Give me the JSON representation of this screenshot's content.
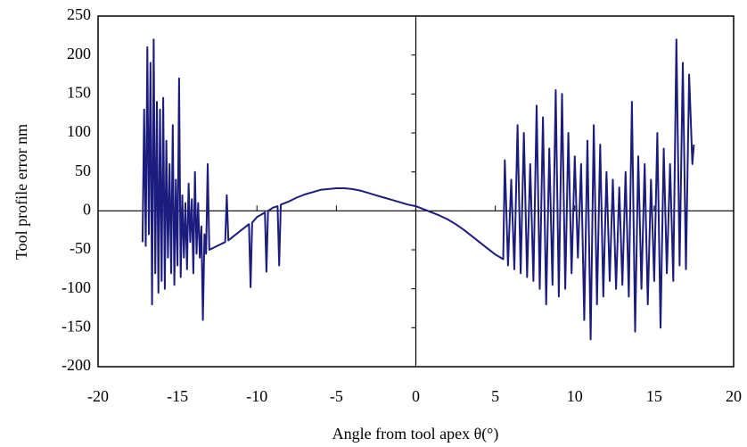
{
  "chart_data": {
    "type": "line",
    "xlabel": "Angle from tool apex θ(°)",
    "ylabel": "Tool profile error  nm",
    "xlim": [
      -20,
      20
    ],
    "xticks": [
      -20,
      -15,
      -10,
      -5,
      0,
      5,
      10,
      15,
      20
    ],
    "ylim": [
      -200,
      250
    ],
    "yticks": [
      -200,
      -150,
      -100,
      -50,
      0,
      50,
      100,
      150,
      200,
      250
    ],
    "x": [
      -17.2,
      -17.1,
      -17.0,
      -16.9,
      -16.8,
      -16.7,
      -16.6,
      -16.5,
      -16.4,
      -16.3,
      -16.2,
      -16.1,
      -16.0,
      -15.9,
      -15.8,
      -15.7,
      -15.6,
      -15.5,
      -15.4,
      -15.3,
      -15.2,
      -15.1,
      -15.0,
      -14.9,
      -14.8,
      -14.7,
      -14.6,
      -14.5,
      -14.4,
      -14.3,
      -14.2,
      -14.1,
      -14.0,
      -13.9,
      -13.8,
      -13.7,
      -13.6,
      -13.5,
      -13.4,
      -13.3,
      -13.2,
      -13.1,
      -13.0,
      -12.5,
      -12.0,
      -11.9,
      -11.8,
      -11.5,
      -11.0,
      -10.5,
      -10.4,
      -10.3,
      -10.0,
      -9.5,
      -9.4,
      -9.3,
      -9.0,
      -8.7,
      -8.6,
      -8.5,
      -8.0,
      -7.5,
      -7.0,
      -6.5,
      -6.0,
      -5.5,
      -5.0,
      -4.5,
      -4.0,
      -3.5,
      -3.0,
      -2.5,
      -2.0,
      -1.5,
      -1.0,
      -0.5,
      0,
      0.5,
      1.0,
      1.5,
      2.0,
      2.5,
      3.0,
      3.5,
      4.0,
      4.5,
      5.0,
      5.5,
      5.6,
      5.8,
      6.0,
      6.2,
      6.4,
      6.6,
      6.8,
      7.0,
      7.2,
      7.4,
      7.6,
      7.8,
      8.0,
      8.2,
      8.4,
      8.6,
      8.8,
      9.0,
      9.2,
      9.4,
      9.6,
      9.8,
      10.0,
      10.2,
      10.4,
      10.6,
      10.8,
      11.0,
      11.2,
      11.4,
      11.6,
      11.8,
      12.0,
      12.2,
      12.4,
      12.6,
      12.8,
      13.0,
      13.2,
      13.4,
      13.6,
      13.8,
      14.0,
      14.2,
      14.4,
      14.6,
      14.8,
      15.0,
      15.2,
      15.4,
      15.6,
      15.8,
      16.0,
      16.2,
      16.4,
      16.6,
      16.8,
      17.0,
      17.2,
      17.4,
      17.5
    ],
    "series": [
      {
        "color": "#1c1c7e",
        "values": [
          -40,
          130,
          -45,
          210,
          -30,
          190,
          -120,
          220,
          -80,
          140,
          -105,
          130,
          -90,
          145,
          -100,
          90,
          -60,
          60,
          -80,
          110,
          -95,
          40,
          -70,
          170,
          -85,
          20,
          -60,
          10,
          -75,
          35,
          -40,
          15,
          -80,
          50,
          -55,
          10,
          -60,
          -20,
          -140,
          -30,
          -55,
          60,
          -50,
          -45,
          -40,
          20,
          -38,
          -33,
          -25,
          -17,
          -98,
          -15,
          -8,
          -2,
          -78,
          0,
          4,
          6,
          -70,
          8,
          12,
          17,
          21,
          24,
          27,
          28,
          29,
          29,
          28,
          26,
          23,
          20,
          17,
          14,
          11,
          8,
          6,
          2,
          -2,
          -6,
          -11,
          -17,
          -24,
          -32,
          -40,
          -48,
          -56,
          -62,
          65,
          -70,
          40,
          -75,
          110,
          -80,
          100,
          -85,
          60,
          -90,
          135,
          -100,
          120,
          -120,
          80,
          -95,
          155,
          -110,
          150,
          -100,
          100,
          -80,
          70,
          -60,
          60,
          -140,
          90,
          -165,
          110,
          -120,
          85,
          -110,
          50,
          -90,
          40,
          -100,
          30,
          -95,
          50,
          -110,
          140,
          -155,
          70,
          -100,
          60,
          -120,
          40,
          -90,
          100,
          -150,
          80,
          -80,
          60,
          -90,
          220,
          -70,
          190,
          -75,
          175,
          60,
          85
        ]
      }
    ]
  }
}
